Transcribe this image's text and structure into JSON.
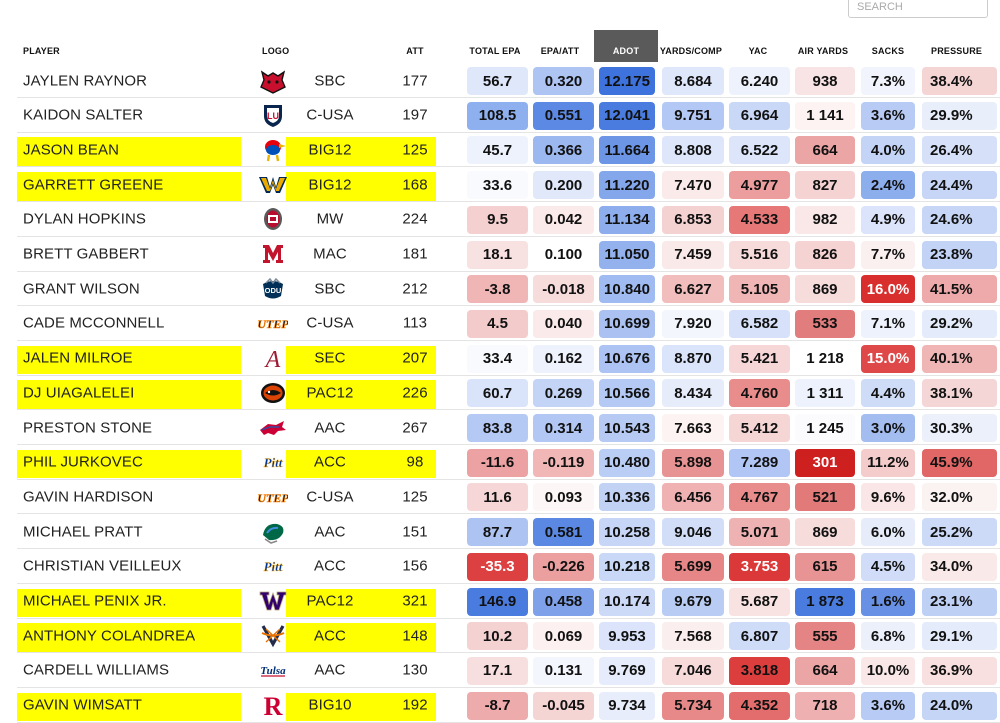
{
  "search": {
    "placeholder": "SEARCH"
  },
  "headers": {
    "player": "PLAYER",
    "logo": "LOGO",
    "att": "ATT",
    "total_epa": "TOTAL EPA",
    "epa_att": "EPA/ATT",
    "adot": "ADOT",
    "yards_comp": "YARDS/COMP",
    "yac": "YAC",
    "air_yards": "AIR YARDS",
    "sacks": "SACKS",
    "pressure": "PRESSURE"
  },
  "rows": [
    {
      "player": "JAYLEN RAYNOR",
      "logo": "arkansas-state-logo",
      "conf": "SBC",
      "att": "177",
      "highlight": false,
      "cells": [
        [
          "56.7",
          "#dfe7fb"
        ],
        [
          "0.320",
          "#aec4f3"
        ],
        [
          "12.175",
          "#3e73dd"
        ],
        [
          "8.684",
          "#dfe7fb"
        ],
        [
          "6.240",
          "#eef2fc"
        ],
        [
          "938",
          "#f8e4e4"
        ],
        [
          "7.3%",
          "#f1f4fc"
        ],
        [
          "38.4%",
          "#f5d4d4"
        ]
      ]
    },
    {
      "player": "KAIDON SALTER",
      "logo": "liberty-logo",
      "conf": "C-USA",
      "att": "197",
      "highlight": false,
      "cells": [
        [
          "108.5",
          "#8fb0ee"
        ],
        [
          "0.551",
          "#5c89e3"
        ],
        [
          "12.041",
          "#4a7cdf"
        ],
        [
          "9.751",
          "#b3c8f4"
        ],
        [
          "6.964",
          "#c9d8f7"
        ],
        [
          "1 141",
          "#fdf3f3"
        ],
        [
          "3.6%",
          "#b7cbf5"
        ],
        [
          "29.9%",
          "#e9eefb"
        ]
      ]
    },
    {
      "player": "JASON BEAN",
      "logo": "kansas-logo",
      "conf": "BIG12",
      "att": "125",
      "highlight": true,
      "cells": [
        [
          "45.7",
          "#eef2fc"
        ],
        [
          "0.366",
          "#9cb8f0"
        ],
        [
          "11.664",
          "#6d95e6"
        ],
        [
          "8.808",
          "#dde6fa"
        ],
        [
          "6.522",
          "#dce5fa"
        ],
        [
          "664",
          "#eba5a5"
        ],
        [
          "4.0%",
          "#c4d4f6"
        ],
        [
          "26.4%",
          "#d6e1f9"
        ]
      ]
    },
    {
      "player": "GARRETT GREENE",
      "logo": "west-virginia-logo",
      "conf": "BIG12",
      "att": "168",
      "highlight": true,
      "cells": [
        [
          "33.6",
          "#f9fafd"
        ],
        [
          "0.200",
          "#e1e8fa"
        ],
        [
          "11.220",
          "#84a6eb"
        ],
        [
          "7.470",
          "#faeaea"
        ],
        [
          "4.977",
          "#ec9d9d"
        ],
        [
          "827",
          "#f5d3d3"
        ],
        [
          "2.4%",
          "#8caeed"
        ],
        [
          "24.4%",
          "#c7d6f6"
        ]
      ]
    },
    {
      "player": "DYLAN HOPKINS",
      "logo": "new-mexico-logo",
      "conf": "MW",
      "att": "224",
      "highlight": false,
      "cells": [
        [
          "9.5",
          "#f5d0d0"
        ],
        [
          "0.042",
          "#faeaea"
        ],
        [
          "11.134",
          "#8dadec"
        ],
        [
          "6.853",
          "#f5d2d2"
        ],
        [
          "4.533",
          "#e67878"
        ],
        [
          "982",
          "#fae8e8"
        ],
        [
          "4.9%",
          "#dbe4fa"
        ],
        [
          "24.6%",
          "#c7d6f6"
        ]
      ]
    },
    {
      "player": "BRETT GABBERT",
      "logo": "miami-oh-logo",
      "conf": "MAC",
      "att": "181",
      "highlight": false,
      "cells": [
        [
          "18.1",
          "#f8e1e1"
        ],
        [
          "0.100",
          "#ffffff"
        ],
        [
          "11.050",
          "#92b1ed"
        ],
        [
          "7.459",
          "#fae9e9"
        ],
        [
          "5.516",
          "#f7dada"
        ],
        [
          "826",
          "#f5d3d3"
        ],
        [
          "7.7%",
          "#fbf0f0"
        ],
        [
          "23.8%",
          "#c3d3f6"
        ]
      ]
    },
    {
      "player": "GRANT WILSON",
      "logo": "old-dominion-logo",
      "conf": "SBC",
      "att": "212",
      "highlight": false,
      "cells": [
        [
          "-3.8",
          "#f0b5b5"
        ],
        [
          "-0.018",
          "#f7dcdc"
        ],
        [
          "10.840",
          "#a0bbf1"
        ],
        [
          "6.627",
          "#f1bdbd"
        ],
        [
          "5.105",
          "#f0b6b6"
        ],
        [
          "869",
          "#f7dcdc"
        ],
        [
          "16.0%",
          "#d92e2e"
        ],
        [
          "41.5%",
          "#eeaaaa"
        ]
      ]
    },
    {
      "player": "CADE MCCONNELL",
      "logo": "utep-logo",
      "conf": "C-USA",
      "att": "113",
      "highlight": false,
      "cells": [
        [
          "4.5",
          "#f4cbcb"
        ],
        [
          "0.040",
          "#faeaea"
        ],
        [
          "10.699",
          "#aac1f2"
        ],
        [
          "7.920",
          "#f3f6fd"
        ],
        [
          "6.582",
          "#d7e1f9"
        ],
        [
          "533",
          "#e27d7d"
        ],
        [
          "7.1%",
          "#eef2fc"
        ],
        [
          "29.2%",
          "#e4ebfa"
        ]
      ]
    },
    {
      "player": "JALEN MILROE",
      "logo": "alabama-logo",
      "conf": "SEC",
      "att": "207",
      "highlight": true,
      "cells": [
        [
          "33.4",
          "#f9fafd"
        ],
        [
          "0.162",
          "#eef2fc"
        ],
        [
          "10.676",
          "#acc3f3"
        ],
        [
          "8.870",
          "#dae4fa"
        ],
        [
          "5.421",
          "#f6d6d6"
        ],
        [
          "1 218",
          "#ffffff"
        ],
        [
          "15.0%",
          "#df4848"
        ],
        [
          "40.1%",
          "#f0b6b6"
        ]
      ]
    },
    {
      "player": "DJ UIAGALELEI",
      "logo": "oregon-state-logo",
      "conf": "PAC12",
      "att": "226",
      "highlight": true,
      "cells": [
        [
          "60.7",
          "#d9e3f9"
        ],
        [
          "0.269",
          "#c4d4f6"
        ],
        [
          "10.566",
          "#b4c9f4"
        ],
        [
          "8.434",
          "#e7ecfb"
        ],
        [
          "4.760",
          "#e88c8c"
        ],
        [
          "1 311",
          "#eef2fc"
        ],
        [
          "4.4%",
          "#cfdcf8"
        ],
        [
          "38.1%",
          "#f5d6d6"
        ]
      ]
    },
    {
      "player": "PRESTON STONE",
      "logo": "smu-logo",
      "conf": "AAC",
      "att": "267",
      "highlight": false,
      "cells": [
        [
          "83.8",
          "#b4c9f4"
        ],
        [
          "0.314",
          "#b2c7f4"
        ],
        [
          "10.543",
          "#b6caf4"
        ],
        [
          "7.663",
          "#fdf3f3"
        ],
        [
          "5.412",
          "#f6d5d5"
        ],
        [
          "1 245",
          "#fbfbfe"
        ],
        [
          "3.0%",
          "#a3bdf1"
        ],
        [
          "30.3%",
          "#ecf0fb"
        ]
      ]
    },
    {
      "player": "PHIL JURKOVEC",
      "logo": "pitt-logo",
      "conf": "ACC",
      "att": "98",
      "highlight": true,
      "cells": [
        [
          "-11.6",
          "#eca2a2"
        ],
        [
          "-0.119",
          "#f1b7b7"
        ],
        [
          "10.480",
          "#bacdf4"
        ],
        [
          "5.898",
          "#e89393"
        ],
        [
          "7.289",
          "#b1c6f4"
        ],
        [
          "301",
          "#cf2020"
        ],
        [
          "11.2%",
          "#f4cccc"
        ],
        [
          "45.9%",
          "#e16666"
        ]
      ]
    },
    {
      "player": "GAVIN HARDISON",
      "logo": "utep-logo",
      "conf": "C-USA",
      "att": "125",
      "highlight": false,
      "cells": [
        [
          "11.6",
          "#f6d6d6"
        ],
        [
          "0.093",
          "#fdf6f6"
        ],
        [
          "10.336",
          "#c2d2f5"
        ],
        [
          "6.456",
          "#efb1b1"
        ],
        [
          "4.767",
          "#e88c8c"
        ],
        [
          "521",
          "#e27a7a"
        ],
        [
          "9.6%",
          "#fae6e6"
        ],
        [
          "32.0%",
          "#fbf2f2"
        ]
      ]
    },
    {
      "player": "MICHAEL PRATT",
      "logo": "tulane-logo",
      "conf": "AAC",
      "att": "151",
      "highlight": false,
      "cells": [
        [
          "87.7",
          "#adc4f3"
        ],
        [
          "0.581",
          "#5a88e3"
        ],
        [
          "10.258",
          "#c7d6f6"
        ],
        [
          "9.046",
          "#d2def8"
        ],
        [
          "5.071",
          "#efb2b2"
        ],
        [
          "869",
          "#f7dcdc"
        ],
        [
          "6.0%",
          "#e7ecfb"
        ],
        [
          "25.2%",
          "#ccd9f7"
        ]
      ]
    },
    {
      "player": "CHRISTIAN VEILLEUX",
      "logo": "pitt-logo",
      "conf": "ACC",
      "att": "156",
      "highlight": false,
      "cells": [
        [
          "-35.3",
          "#dc4040"
        ],
        [
          "-0.226",
          "#eb9f9f"
        ],
        [
          "10.218",
          "#c9d8f7"
        ],
        [
          "5.699",
          "#e68686"
        ],
        [
          "3.753",
          "#db3939"
        ],
        [
          "615",
          "#e89494"
        ],
        [
          "4.5%",
          "#d1ddf8"
        ],
        [
          "34.0%",
          "#fae9e9"
        ]
      ]
    },
    {
      "player": "MICHAEL PENIX JR.",
      "logo": "washington-logo",
      "conf": "PAC12",
      "att": "321",
      "highlight": true,
      "cells": [
        [
          "146.9",
          "#4a7cdf"
        ],
        [
          "0.458",
          "#7ea1ea"
        ],
        [
          "10.174",
          "#ccd9f7"
        ],
        [
          "9.679",
          "#b8ccf4"
        ],
        [
          "5.687",
          "#f8e2e2"
        ],
        [
          "1 873",
          "#4a7cdf"
        ],
        [
          "1.6%",
          "#6891e5"
        ],
        [
          "23.1%",
          "#bfd0f5"
        ]
      ]
    },
    {
      "player": "ANTHONY COLANDREA",
      "logo": "virginia-logo",
      "conf": "ACC",
      "att": "148",
      "highlight": true,
      "cells": [
        [
          "10.2",
          "#f5d2d2"
        ],
        [
          "0.069",
          "#fcf0f0"
        ],
        [
          "9.953",
          "#dbe4fa"
        ],
        [
          "7.568",
          "#fbeeee"
        ],
        [
          "6.807",
          "#cfdcf8"
        ],
        [
          "555",
          "#e58484"
        ],
        [
          "6.8%",
          "#ecf0fb"
        ],
        [
          "29.1%",
          "#e4ebfa"
        ]
      ]
    },
    {
      "player": "CARDELL WILLIAMS",
      "logo": "tulsa-logo",
      "conf": "AAC",
      "att": "130",
      "highlight": false,
      "cells": [
        [
          "17.1",
          "#f8dfdf"
        ],
        [
          "0.131",
          "#f4f6fd"
        ],
        [
          "9.769",
          "#e6ecfb"
        ],
        [
          "7.046",
          "#f7dbdb"
        ],
        [
          "3.818",
          "#dc3e3e"
        ],
        [
          "664",
          "#eba5a5"
        ],
        [
          "10.0%",
          "#fae8e8"
        ],
        [
          "36.9%",
          "#f8e0e0"
        ]
      ]
    },
    {
      "player": "GAVIN WIMSATT",
      "logo": "rutgers-logo",
      "conf": "BIG10",
      "att": "192",
      "highlight": true,
      "cells": [
        [
          "-8.7",
          "#eeabab"
        ],
        [
          "-0.045",
          "#f5d4d4"
        ],
        [
          "9.734",
          "#e8edfb"
        ],
        [
          "5.734",
          "#e78989"
        ],
        [
          "4.352",
          "#e36c6c"
        ],
        [
          "718",
          "#eeb0b0"
        ],
        [
          "3.6%",
          "#b7cbf5"
        ],
        [
          "24.0%",
          "#c5d5f6"
        ]
      ]
    }
  ]
}
